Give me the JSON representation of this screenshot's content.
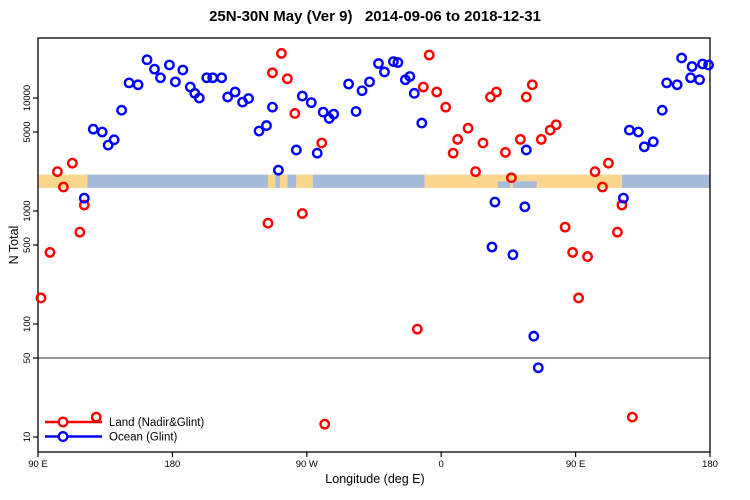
{
  "title": "25N-30N May (Ver 9)   2014-09-06 to 2018-12-31",
  "chart_data": {
    "type": "scatter",
    "title": "25N-30N May (Ver 9)   2014-09-06 to 2018-12-31",
    "xlabel": "Longitude (deg E)",
    "ylabel": "N Total",
    "x_axis": {
      "comment_units": "degrees along axis, 0=90E wrapping east to 450=180",
      "range": [
        0,
        450
      ],
      "ticks": [
        {
          "pos": 0,
          "label": "90 E"
        },
        {
          "pos": 90,
          "label": "180"
        },
        {
          "pos": 180,
          "label": "90 W"
        },
        {
          "pos": 270,
          "label": "0"
        },
        {
          "pos": 360,
          "label": "90 E"
        },
        {
          "pos": 450,
          "label": "180"
        }
      ]
    },
    "y_axis": {
      "scale": "log",
      "range": [
        7.4,
        34000
      ],
      "ticks": [
        10,
        50,
        100,
        500,
        1000,
        5000,
        10000
      ]
    },
    "hline": 50,
    "grid": false,
    "map_band": {
      "value_top": 2100,
      "value_bottom": 1600,
      "land_color": "#FBD78E",
      "ocean_color": "#A7BCDB",
      "segments": [
        {
          "from": 0,
          "to": 33,
          "type": "land"
        },
        {
          "from": 33,
          "to": 154,
          "type": "ocean"
        },
        {
          "from": 154,
          "to": 159,
          "type": "land"
        },
        {
          "from": 159,
          "to": 162,
          "type": "ocean"
        },
        {
          "from": 162,
          "to": 167,
          "type": "land"
        },
        {
          "from": 167,
          "to": 173,
          "type": "ocean"
        },
        {
          "from": 173,
          "to": 184,
          "type": "land"
        },
        {
          "from": 184,
          "to": 259,
          "type": "ocean"
        },
        {
          "from": 259,
          "to": 391,
          "type": "land"
        },
        {
          "from": 391,
          "to": 450,
          "type": "ocean"
        }
      ],
      "half_dents_ocean": [
        {
          "from": 308,
          "to": 316
        },
        {
          "from": 318,
          "to": 334
        }
      ]
    },
    "legend": {
      "position": "bottom-left",
      "entries": [
        {
          "label": "Land (Nadir&Glint)",
          "color": "#FF0000"
        },
        {
          "label": "Ocean (Glint)",
          "color": "#0000FF"
        }
      ]
    },
    "series": [
      {
        "name": "Land (Nadir&Glint)",
        "color": "#FF0000",
        "points": [
          [
            2,
            170
          ],
          [
            8,
            430
          ],
          [
            13,
            2230
          ],
          [
            17,
            1630
          ],
          [
            23,
            2650
          ],
          [
            28,
            650
          ],
          [
            31,
            1130
          ],
          [
            39,
            15
          ],
          [
            154,
            780
          ],
          [
            157,
            16700
          ],
          [
            163,
            24800
          ],
          [
            167,
            14800
          ],
          [
            172,
            7300
          ],
          [
            177,
            950
          ],
          [
            190,
            4000
          ],
          [
            192,
            13
          ],
          [
            254,
            90
          ],
          [
            258,
            12500
          ],
          [
            262,
            24000
          ],
          [
            267,
            11300
          ],
          [
            273,
            8300
          ],
          [
            278,
            3250
          ],
          [
            281,
            4300
          ],
          [
            288,
            5400
          ],
          [
            293,
            2230
          ],
          [
            298,
            4000
          ],
          [
            303,
            10200
          ],
          [
            307,
            11300
          ],
          [
            313,
            3300
          ],
          [
            317,
            1970
          ],
          [
            323,
            4300
          ],
          [
            327,
            10200
          ],
          [
            331,
            13100
          ],
          [
            337,
            4300
          ],
          [
            343,
            5200
          ],
          [
            347,
            5800
          ],
          [
            353,
            720
          ],
          [
            358,
            430
          ],
          [
            362,
            170
          ],
          [
            368,
            395
          ],
          [
            373,
            2230
          ],
          [
            378,
            1630
          ],
          [
            382,
            2650
          ],
          [
            388,
            650
          ],
          [
            391,
            1130
          ],
          [
            398,
            15
          ]
        ]
      },
      {
        "name": "Ocean (Glint)",
        "color": "#0000FF",
        "points": [
          [
            31,
            1300
          ],
          [
            37,
            5300
          ],
          [
            43,
            5000
          ],
          [
            47,
            3830
          ],
          [
            51,
            4270
          ],
          [
            56,
            7800
          ],
          [
            61,
            13600
          ],
          [
            67,
            13100
          ],
          [
            73,
            21800
          ],
          [
            78,
            18000
          ],
          [
            82,
            15100
          ],
          [
            88,
            19600
          ],
          [
            92,
            13900
          ],
          [
            97,
            17700
          ],
          [
            102,
            12500
          ],
          [
            105,
            11000
          ],
          [
            108,
            10000
          ],
          [
            113,
            15100
          ],
          [
            117,
            15100
          ],
          [
            123,
            15100
          ],
          [
            127,
            10200
          ],
          [
            132,
            11300
          ],
          [
            137,
            9200
          ],
          [
            141,
            9900
          ],
          [
            148,
            5100
          ],
          [
            153,
            5700
          ],
          [
            157,
            8300
          ],
          [
            161,
            2300
          ],
          [
            173,
            3470
          ],
          [
            177,
            10400
          ],
          [
            183,
            9100
          ],
          [
            187,
            3250
          ],
          [
            191,
            7500
          ],
          [
            195,
            6600
          ],
          [
            198,
            7200
          ],
          [
            208,
            13300
          ],
          [
            213,
            7600
          ],
          [
            217,
            11600
          ],
          [
            222,
            13900
          ],
          [
            228,
            20200
          ],
          [
            232,
            17000
          ],
          [
            238,
            21000
          ],
          [
            241,
            20600
          ],
          [
            246,
            14500
          ],
          [
            249,
            15500
          ],
          [
            252,
            11000
          ],
          [
            257,
            6000
          ],
          [
            304,
            480
          ],
          [
            306,
            1200
          ],
          [
            318,
            410
          ],
          [
            326,
            1090
          ],
          [
            327,
            3470
          ],
          [
            332,
            78
          ],
          [
            335,
            41
          ],
          [
            392,
            1300
          ],
          [
            396,
            5200
          ],
          [
            402,
            5000
          ],
          [
            406,
            3700
          ],
          [
            412,
            4100
          ],
          [
            418,
            7800
          ],
          [
            421,
            13600
          ],
          [
            428,
            13100
          ],
          [
            431,
            22600
          ],
          [
            437,
            15100
          ],
          [
            438,
            19000
          ],
          [
            443,
            14500
          ],
          [
            445,
            20000
          ],
          [
            449,
            19600
          ]
        ]
      }
    ]
  }
}
